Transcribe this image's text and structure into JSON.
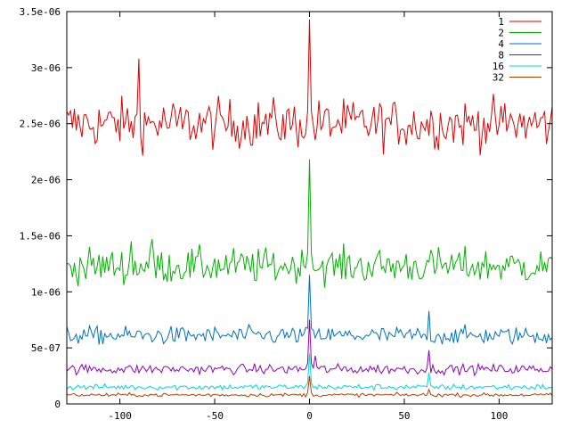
{
  "chart_data": {
    "type": "line",
    "title": "",
    "xlabel": "",
    "ylabel": "",
    "xlim": [
      -128,
      128
    ],
    "ylim": [
      0,
      3.5e-06
    ],
    "xticks": [
      {
        "v": -100,
        "label": "-100"
      },
      {
        "v": -50,
        "label": "-50"
      },
      {
        "v": 0,
        "label": "0"
      },
      {
        "v": 50,
        "label": "50"
      },
      {
        "v": 100,
        "label": "100"
      }
    ],
    "yticks": [
      {
        "v": 0,
        "label": "0"
      },
      {
        "v": 5e-07,
        "label": "5e-07"
      },
      {
        "v": 1e-06,
        "label": "1e-06"
      },
      {
        "v": 1.5e-06,
        "label": "1.5e-06"
      },
      {
        "v": 2e-06,
        "label": "2e-06"
      },
      {
        "v": 2.5e-06,
        "label": "2.5e-06"
      },
      {
        "v": 3e-06,
        "label": "3e-06"
      },
      {
        "v": 3.5e-06,
        "label": "3.5e-06"
      }
    ],
    "grid": false,
    "legend_position": "top-right",
    "series": [
      {
        "name": "1",
        "color": "#e00000",
        "baseline": 2.5e-06,
        "noise": 1.1e-07,
        "peak_x": 0,
        "peak_y": 3.43e-06,
        "spikes": [
          {
            "x": -90,
            "y": 3.08e-06
          }
        ]
      },
      {
        "name": "2",
        "color": "#00b000",
        "baseline": 1.23e-06,
        "noise": 8e-08,
        "peak_x": 0,
        "peak_y": 2.18e-06,
        "spikes": [
          {
            "x": -83,
            "y": 1.47e-06
          },
          {
            "x": -94,
            "y": 1.45e-06
          }
        ]
      },
      {
        "name": "4",
        "color": "#0070c0",
        "baseline": 6.1e-07,
        "noise": 4e-08,
        "peak_x": 0,
        "peak_y": 1.15e-06,
        "spikes": [
          {
            "x": 63,
            "y": 8.3e-07
          }
        ]
      },
      {
        "name": "8",
        "color": "#9000c0",
        "baseline": 3.1e-07,
        "noise": 2.2e-08,
        "peak_x": 0,
        "peak_y": 7.5e-07,
        "spikes": [
          {
            "x": 63,
            "y": 4.8e-07
          },
          {
            "x": 3,
            "y": 4.3e-07
          }
        ]
      },
      {
        "name": "16",
        "color": "#00d8d8",
        "baseline": 1.5e-07,
        "noise": 1.3e-08,
        "peak_x": 0,
        "peak_y": 4.5e-07,
        "spikes": [
          {
            "x": 63,
            "y": 2.8e-07
          }
        ]
      },
      {
        "name": "32",
        "color": "#b04000",
        "baseline": 8e-08,
        "noise": 8e-09,
        "peak_x": 0,
        "peak_y": 2.5e-07,
        "spikes": [
          {
            "x": 63,
            "y": 1.3e-07
          }
        ]
      }
    ]
  }
}
